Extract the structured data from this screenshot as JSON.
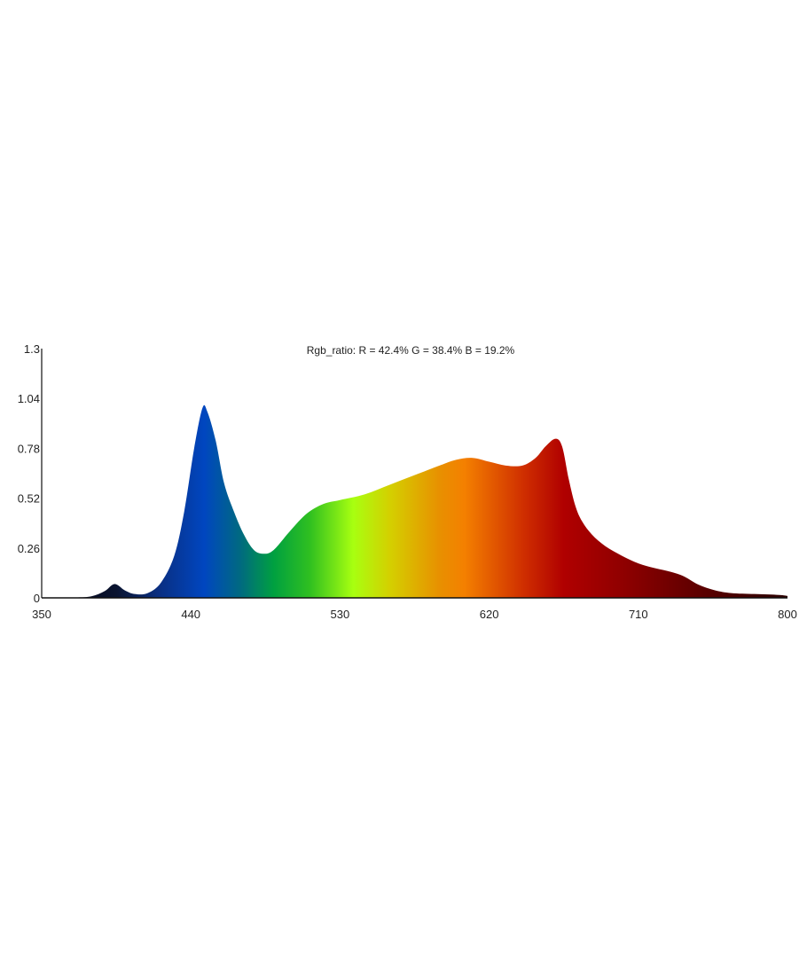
{
  "chart_data": {
    "type": "area",
    "title": "Rgb_ratio: R = 42.4% G = 38.4% B = 19.2%",
    "xlabel": "",
    "ylabel": "",
    "xlim": [
      350,
      800
    ],
    "ylim": [
      0,
      1.3
    ],
    "x_ticks": [
      "350",
      "440",
      "530",
      "620",
      "710",
      "800"
    ],
    "y_ticks": [
      "0",
      "0.26",
      "0.52",
      "0.78",
      "1.04",
      "1.3"
    ],
    "grid": false,
    "fill": "wavelength color gradient",
    "x": [
      350,
      370,
      380,
      388,
      394,
      400,
      406,
      414,
      422,
      430,
      436,
      442,
      447,
      450,
      455,
      460,
      466,
      472,
      478,
      484,
      490,
      500,
      510,
      520,
      530,
      545,
      560,
      575,
      590,
      600,
      610,
      620,
      630,
      640,
      648,
      654,
      660,
      664,
      668,
      672,
      676,
      682,
      690,
      700,
      710,
      720,
      730,
      738,
      746,
      756,
      766,
      780,
      795,
      800
    ],
    "y": [
      0,
      0.002,
      0.008,
      0.035,
      0.072,
      0.04,
      0.02,
      0.025,
      0.08,
      0.22,
      0.45,
      0.78,
      0.99,
      0.97,
      0.82,
      0.6,
      0.45,
      0.33,
      0.25,
      0.23,
      0.25,
      0.35,
      0.44,
      0.49,
      0.51,
      0.54,
      0.59,
      0.64,
      0.69,
      0.72,
      0.73,
      0.71,
      0.69,
      0.69,
      0.73,
      0.79,
      0.83,
      0.79,
      0.62,
      0.48,
      0.4,
      0.33,
      0.27,
      0.22,
      0.18,
      0.155,
      0.135,
      0.11,
      0.07,
      0.04,
      0.025,
      0.02,
      0.015,
      0.01
    ],
    "gradient_stops": [
      {
        "x": 350,
        "color": "#000010"
      },
      {
        "x": 395,
        "color": "#0a1430"
      },
      {
        "x": 420,
        "color": "#0a2e80"
      },
      {
        "x": 448,
        "color": "#0046c0"
      },
      {
        "x": 470,
        "color": "#006a80"
      },
      {
        "x": 490,
        "color": "#00a040"
      },
      {
        "x": 512,
        "color": "#30c020"
      },
      {
        "x": 538,
        "color": "#a8ff10"
      },
      {
        "x": 560,
        "color": "#d4d000"
      },
      {
        "x": 590,
        "color": "#e89000"
      },
      {
        "x": 605,
        "color": "#f48000"
      },
      {
        "x": 640,
        "color": "#d03000"
      },
      {
        "x": 665,
        "color": "#b00000"
      },
      {
        "x": 700,
        "color": "#900000"
      },
      {
        "x": 750,
        "color": "#5a0000"
      },
      {
        "x": 800,
        "color": "#2a0000"
      }
    ]
  }
}
